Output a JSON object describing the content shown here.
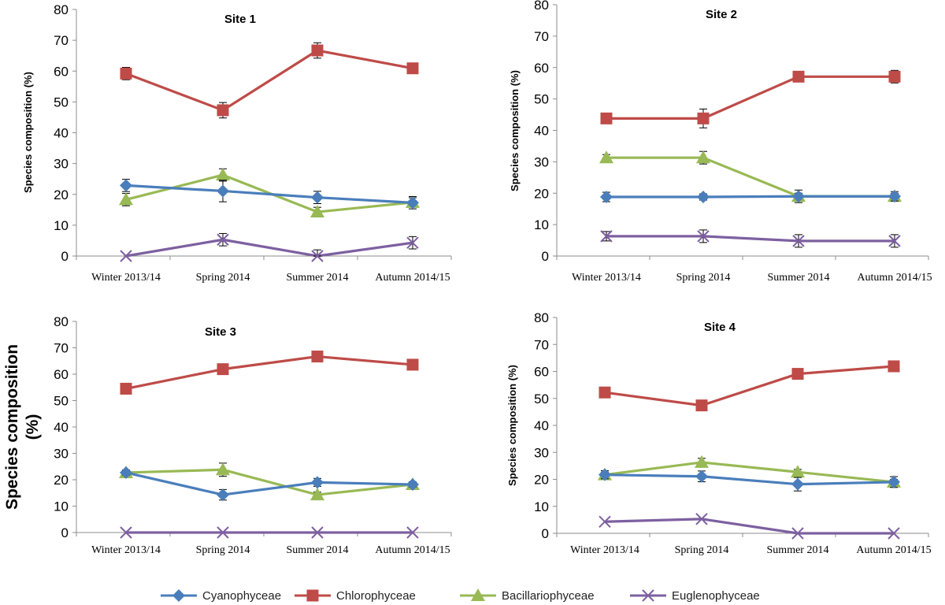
{
  "chart_data": [
    {
      "type": "line",
      "title": "Site 1",
      "xlabel": "",
      "ylabel": "Species composition (%)",
      "ylim": [
        0,
        80
      ],
      "yticks": [
        0,
        10,
        20,
        30,
        40,
        50,
        60,
        70,
        80
      ],
      "categories": [
        "Winter  2013/14",
        "Spring 2014",
        "Summer 2014",
        "Autumn 2014/15"
      ],
      "series": [
        {
          "name": "Cyanophyceae",
          "values": [
            22.9,
            21.1,
            19.0,
            17.3
          ],
          "errors": [
            2,
            3.5,
            2,
            2
          ]
        },
        {
          "name": "Chlorophyceae",
          "values": [
            59.2,
            47.3,
            66.7,
            60.9
          ],
          "errors": [
            2,
            2.5,
            2.5,
            1
          ]
        },
        {
          "name": "Bacillariophyceae",
          "values": [
            18.3,
            26.3,
            14.3,
            17.4
          ],
          "errors": [
            2,
            2,
            1.5,
            1.5
          ]
        },
        {
          "name": "Euglenophyceae",
          "values": [
            0,
            5.3,
            0,
            4.3
          ],
          "errors": [
            0,
            2,
            2,
            2
          ]
        }
      ]
    },
    {
      "type": "line",
      "title": "Site 2",
      "xlabel": "",
      "ylabel": "Species composition  (%)",
      "ylim": [
        0,
        80
      ],
      "yticks": [
        0,
        10,
        20,
        30,
        40,
        50,
        60,
        70,
        80
      ],
      "categories": [
        "Winter  2013/14",
        "Spring 2014",
        "Summer 2014",
        "Autumn 2014/15"
      ],
      "series": [
        {
          "name": "Cyanophyceae",
          "values": [
            18.8,
            18.8,
            19.0,
            19.0
          ],
          "errors": [
            1.5,
            1,
            2,
            1.5
          ]
        },
        {
          "name": "Chlorophyceae",
          "values": [
            43.8,
            43.8,
            57.1,
            57.1
          ],
          "errors": [
            1,
            3,
            1.5,
            2
          ]
        },
        {
          "name": "Bacillariophyceae",
          "values": [
            31.3,
            31.3,
            19.0,
            19.0
          ],
          "errors": [
            1,
            2,
            1,
            1
          ]
        },
        {
          "name": "Euglenophyceae",
          "values": [
            6.3,
            6.3,
            4.8,
            4.8
          ],
          "errors": [
            1.5,
            2,
            2,
            2
          ]
        }
      ]
    },
    {
      "type": "line",
      "title": "Site 3",
      "xlabel": "",
      "ylabel": "Species    composition (%)",
      "ylim": [
        0,
        80
      ],
      "yticks": [
        0,
        10,
        20,
        30,
        40,
        50,
        60,
        70,
        80
      ],
      "categories": [
        "Winter  2013/14",
        "Spring 2014",
        "Summer 2014",
        "Autumn 2014/15"
      ],
      "series": [
        {
          "name": "Cyanophyceae",
          "values": [
            22.7,
            14.3,
            19.0,
            18.2
          ],
          "errors": [
            1,
            2,
            1.5,
            1
          ]
        },
        {
          "name": "Chlorophyceae",
          "values": [
            54.5,
            61.9,
            66.7,
            63.6
          ],
          "errors": [
            1,
            1,
            1,
            1
          ]
        },
        {
          "name": "Bacillariophyceae",
          "values": [
            22.7,
            23.8,
            14.3,
            18.2
          ],
          "errors": [
            1,
            2.5,
            1,
            1
          ]
        },
        {
          "name": "Euglenophyceae",
          "values": [
            0,
            0,
            0,
            0
          ],
          "errors": [
            0,
            0,
            0,
            0
          ]
        }
      ]
    },
    {
      "type": "line",
      "title": "Site 4",
      "xlabel": "",
      "ylabel": "Species composition (%)",
      "ylim": [
        0,
        80
      ],
      "yticks": [
        0,
        10,
        20,
        30,
        40,
        50,
        60,
        70,
        80
      ],
      "categories": [
        "Winter  2013/14",
        "Spring 2014",
        "Summer 2014",
        "Autumn 2014/15"
      ],
      "series": [
        {
          "name": "Cyanophyceae",
          "values": [
            21.7,
            21.1,
            18.2,
            19.0
          ],
          "errors": [
            1.5,
            2,
            2.5,
            2
          ]
        },
        {
          "name": "Chlorophyceae",
          "values": [
            52.2,
            47.4,
            59.1,
            61.9
          ],
          "errors": [
            1,
            1,
            1,
            1
          ]
        },
        {
          "name": "Bacillariophyceae",
          "values": [
            21.7,
            26.3,
            22.7,
            19.0
          ],
          "errors": [
            1,
            1.5,
            1,
            1
          ]
        },
        {
          "name": "Euglenophyceae",
          "values": [
            4.3,
            5.3,
            0,
            0
          ],
          "errors": [
            0,
            0,
            0,
            0
          ]
        }
      ]
    }
  ],
  "legend": {
    "placement": "bottom-center",
    "items": [
      {
        "label": "Cyanophyceae",
        "marker": "diamond",
        "color": "#4a7ebb"
      },
      {
        "label": "Chlorophyceae",
        "marker": "square",
        "color": "#be4b48"
      },
      {
        "label": "Bacillariophyceae",
        "marker": "triangle",
        "color": "#98b954"
      },
      {
        "label": "Euglenophyceae",
        "marker": "x",
        "color": "#7d60a0"
      }
    ]
  },
  "colors": {
    "Cyanophyceae": "#4a7ebb",
    "Chlorophyceae": "#be4b48",
    "Bacillariophyceae": "#98b954",
    "Euglenophyceae": "#7d60a0",
    "axis": "#8c8c8c"
  }
}
